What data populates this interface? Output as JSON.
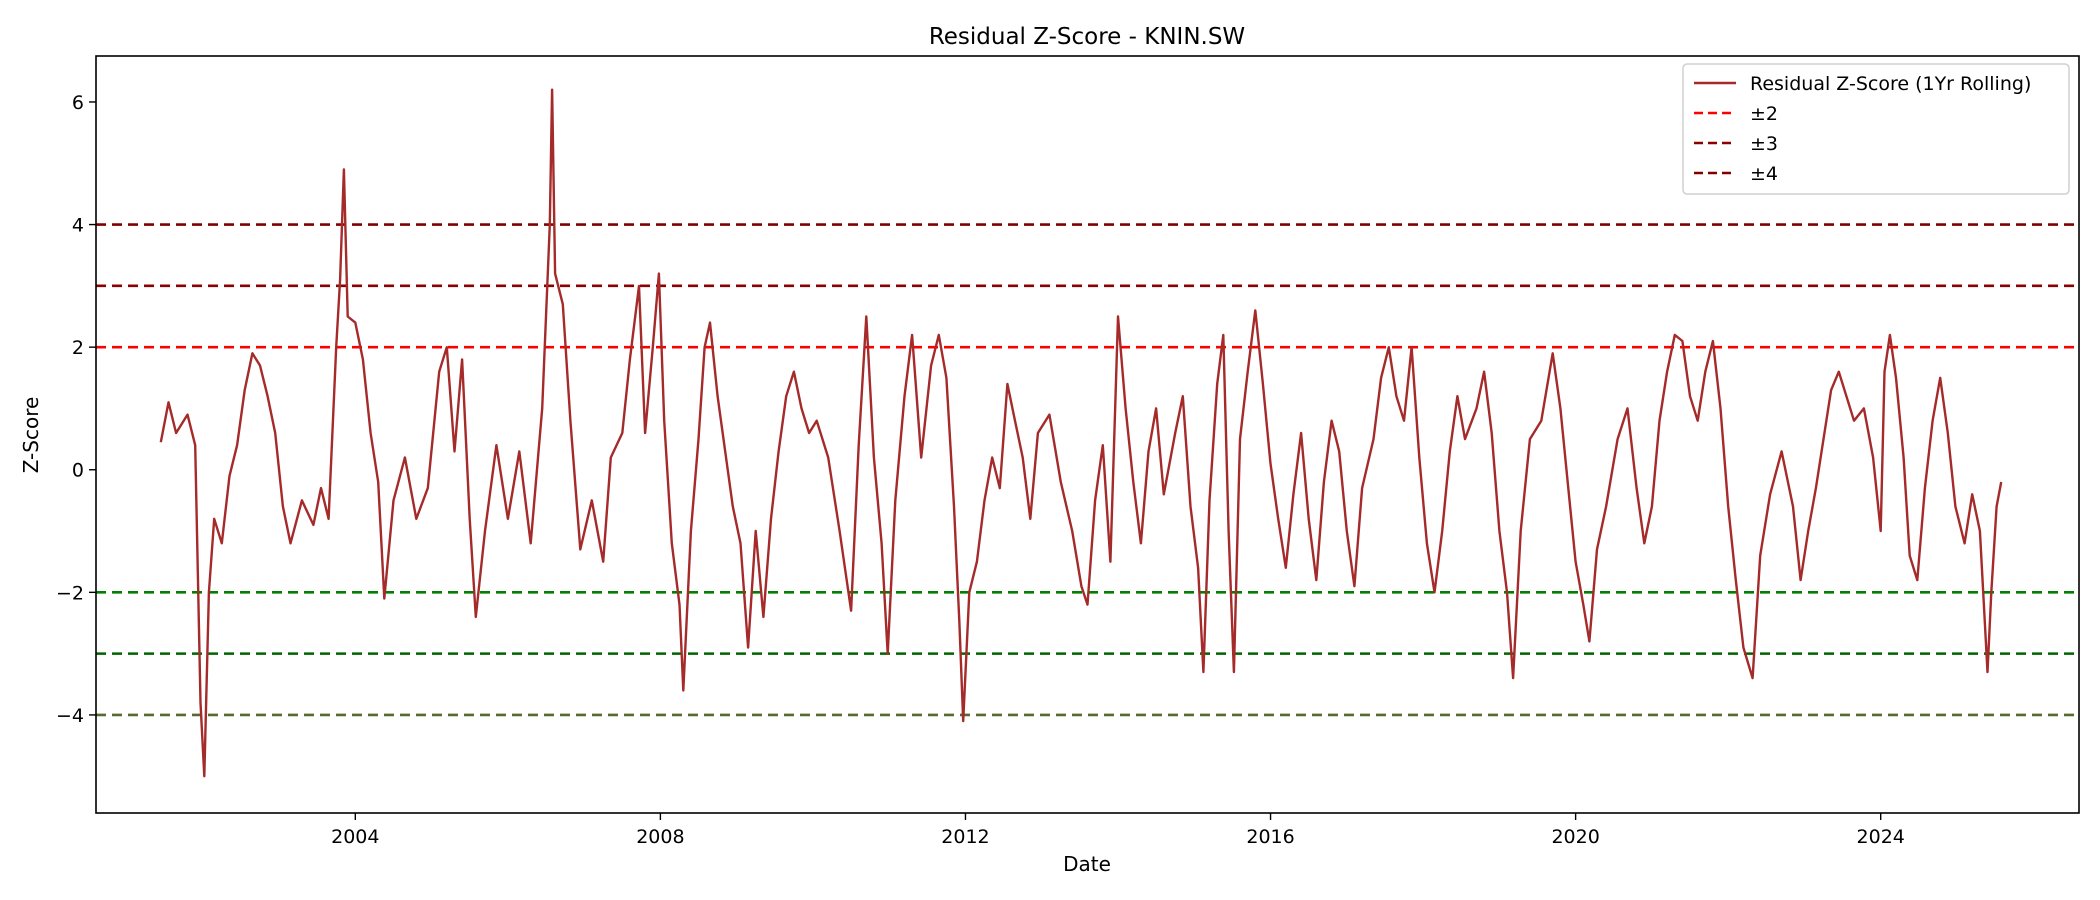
{
  "chart_data": {
    "type": "line",
    "title": "Residual Z-Score - KNIN.SW",
    "xlabel": "Date",
    "ylabel": "Z-Score",
    "xlim": [
      2000.6,
      2026.6
    ],
    "ylim": [
      -5.6,
      6.75
    ],
    "x_ticks": [
      2004,
      2008,
      2012,
      2016,
      2020,
      2024
    ],
    "x_tick_labels": [
      "2004",
      "2008",
      "2012",
      "2016",
      "2020",
      "2024"
    ],
    "y_ticks": [
      -4,
      -2,
      0,
      2,
      4,
      6
    ],
    "y_tick_labels": [
      "−4",
      "−2",
      "0",
      "2",
      "4",
      "6"
    ],
    "grid": false,
    "legend_position": "top-right",
    "series": [
      {
        "name": "Residual Z-Score (1Yr Rolling)",
        "color": "#a52a2a",
        "style": "solid",
        "points": [
          [
            2001.45,
            0.45
          ],
          [
            2001.55,
            1.1
          ],
          [
            2001.65,
            0.6
          ],
          [
            2001.8,
            0.9
          ],
          [
            2001.9,
            0.4
          ],
          [
            2001.97,
            -3.8
          ],
          [
            2002.02,
            -5.0
          ],
          [
            2002.08,
            -2.0
          ],
          [
            2002.15,
            -0.8
          ],
          [
            2002.25,
            -1.2
          ],
          [
            2002.35,
            -0.1
          ],
          [
            2002.45,
            0.4
          ],
          [
            2002.55,
            1.3
          ],
          [
            2002.65,
            1.9
          ],
          [
            2002.75,
            1.7
          ],
          [
            2002.85,
            1.2
          ],
          [
            2002.95,
            0.6
          ],
          [
            2003.05,
            -0.6
          ],
          [
            2003.15,
            -1.2
          ],
          [
            2003.3,
            -0.5
          ],
          [
            2003.45,
            -0.9
          ],
          [
            2003.55,
            -0.3
          ],
          [
            2003.65,
            -0.8
          ],
          [
            2003.75,
            2.0
          ],
          [
            2003.8,
            3.1
          ],
          [
            2003.85,
            4.9
          ],
          [
            2003.9,
            2.5
          ],
          [
            2004.0,
            2.4
          ],
          [
            2004.1,
            1.8
          ],
          [
            2004.2,
            0.6
          ],
          [
            2004.3,
            -0.2
          ],
          [
            2004.38,
            -2.1
          ],
          [
            2004.5,
            -0.5
          ],
          [
            2004.65,
            0.2
          ],
          [
            2004.8,
            -0.8
          ],
          [
            2004.95,
            -0.3
          ],
          [
            2005.1,
            1.6
          ],
          [
            2005.2,
            2.0
          ],
          [
            2005.3,
            0.3
          ],
          [
            2005.4,
            1.8
          ],
          [
            2005.5,
            -0.8
          ],
          [
            2005.58,
            -2.4
          ],
          [
            2005.7,
            -1.0
          ],
          [
            2005.85,
            0.4
          ],
          [
            2006.0,
            -0.8
          ],
          [
            2006.15,
            0.3
          ],
          [
            2006.3,
            -1.2
          ],
          [
            2006.45,
            1.0
          ],
          [
            2006.55,
            4.0
          ],
          [
            2006.58,
            6.2
          ],
          [
            2006.62,
            3.2
          ],
          [
            2006.72,
            2.7
          ],
          [
            2006.82,
            0.8
          ],
          [
            2006.95,
            -1.3
          ],
          [
            2007.1,
            -0.5
          ],
          [
            2007.25,
            -1.5
          ],
          [
            2007.35,
            0.2
          ],
          [
            2007.5,
            0.6
          ],
          [
            2007.6,
            1.8
          ],
          [
            2007.72,
            3.0
          ],
          [
            2007.8,
            0.6
          ],
          [
            2007.9,
            2.0
          ],
          [
            2007.98,
            3.2
          ],
          [
            2008.05,
            0.8
          ],
          [
            2008.15,
            -1.2
          ],
          [
            2008.25,
            -2.2
          ],
          [
            2008.3,
            -3.6
          ],
          [
            2008.4,
            -1.0
          ],
          [
            2008.5,
            0.5
          ],
          [
            2008.58,
            2.0
          ],
          [
            2008.65,
            2.4
          ],
          [
            2008.75,
            1.2
          ],
          [
            2008.85,
            0.3
          ],
          [
            2008.95,
            -0.6
          ],
          [
            2009.05,
            -1.2
          ],
          [
            2009.15,
            -2.9
          ],
          [
            2009.25,
            -1.0
          ],
          [
            2009.35,
            -2.4
          ],
          [
            2009.45,
            -0.8
          ],
          [
            2009.55,
            0.3
          ],
          [
            2009.65,
            1.2
          ],
          [
            2009.75,
            1.6
          ],
          [
            2009.85,
            1.0
          ],
          [
            2009.95,
            0.6
          ],
          [
            2010.05,
            0.8
          ],
          [
            2010.2,
            0.2
          ],
          [
            2010.35,
            -1.0
          ],
          [
            2010.5,
            -2.3
          ],
          [
            2010.6,
            0.4
          ],
          [
            2010.7,
            2.5
          ],
          [
            2010.8,
            0.2
          ],
          [
            2010.9,
            -1.2
          ],
          [
            2010.98,
            -3.0
          ],
          [
            2011.08,
            -0.5
          ],
          [
            2011.2,
            1.2
          ],
          [
            2011.3,
            2.2
          ],
          [
            2011.42,
            0.2
          ],
          [
            2011.55,
            1.7
          ],
          [
            2011.65,
            2.2
          ],
          [
            2011.75,
            1.5
          ],
          [
            2011.85,
            -0.6
          ],
          [
            2011.92,
            -2.5
          ],
          [
            2011.97,
            -4.1
          ],
          [
            2012.05,
            -2.0
          ],
          [
            2012.15,
            -1.5
          ],
          [
            2012.25,
            -0.5
          ],
          [
            2012.35,
            0.2
          ],
          [
            2012.45,
            -0.3
          ],
          [
            2012.55,
            1.4
          ],
          [
            2012.65,
            0.8
          ],
          [
            2012.75,
            0.2
          ],
          [
            2012.85,
            -0.8
          ],
          [
            2012.95,
            0.6
          ],
          [
            2013.1,
            0.9
          ],
          [
            2013.25,
            -0.2
          ],
          [
            2013.4,
            -1.0
          ],
          [
            2013.52,
            -1.9
          ],
          [
            2013.6,
            -2.2
          ],
          [
            2013.7,
            -0.5
          ],
          [
            2013.8,
            0.4
          ],
          [
            2013.9,
            -1.5
          ],
          [
            2014.0,
            2.5
          ],
          [
            2014.1,
            1.0
          ],
          [
            2014.2,
            -0.2
          ],
          [
            2014.3,
            -1.2
          ],
          [
            2014.4,
            0.3
          ],
          [
            2014.5,
            1.0
          ],
          [
            2014.6,
            -0.4
          ],
          [
            2014.75,
            0.6
          ],
          [
            2014.85,
            1.2
          ],
          [
            2014.95,
            -0.6
          ],
          [
            2015.05,
            -1.6
          ],
          [
            2015.12,
            -3.3
          ],
          [
            2015.2,
            -0.5
          ],
          [
            2015.3,
            1.4
          ],
          [
            2015.38,
            2.2
          ],
          [
            2015.45,
            -1.0
          ],
          [
            2015.52,
            -3.3
          ],
          [
            2015.6,
            0.5
          ],
          [
            2015.7,
            1.6
          ],
          [
            2015.8,
            2.6
          ],
          [
            2015.9,
            1.4
          ],
          [
            2016.0,
            0.1
          ],
          [
            2016.1,
            -0.8
          ],
          [
            2016.2,
            -1.6
          ],
          [
            2016.3,
            -0.4
          ],
          [
            2016.4,
            0.6
          ],
          [
            2016.5,
            -0.8
          ],
          [
            2016.6,
            -1.8
          ],
          [
            2016.7,
            -0.2
          ],
          [
            2016.8,
            0.8
          ],
          [
            2016.9,
            0.3
          ],
          [
            2017.0,
            -1.0
          ],
          [
            2017.1,
            -1.9
          ],
          [
            2017.2,
            -0.3
          ],
          [
            2017.35,
            0.5
          ],
          [
            2017.45,
            1.5
          ],
          [
            2017.55,
            2.0
          ],
          [
            2017.65,
            1.2
          ],
          [
            2017.75,
            0.8
          ],
          [
            2017.85,
            2.0
          ],
          [
            2017.95,
            0.2
          ],
          [
            2018.05,
            -1.2
          ],
          [
            2018.15,
            -2.0
          ],
          [
            2018.25,
            -1.0
          ],
          [
            2018.35,
            0.3
          ],
          [
            2018.45,
            1.2
          ],
          [
            2018.55,
            0.5
          ],
          [
            2018.7,
            1.0
          ],
          [
            2018.8,
            1.6
          ],
          [
            2018.9,
            0.6
          ],
          [
            2019.0,
            -1.0
          ],
          [
            2019.1,
            -2.0
          ],
          [
            2019.18,
            -3.4
          ],
          [
            2019.28,
            -1.0
          ],
          [
            2019.4,
            0.5
          ],
          [
            2019.55,
            0.8
          ],
          [
            2019.7,
            1.9
          ],
          [
            2019.8,
            1.0
          ],
          [
            2019.92,
            -0.5
          ],
          [
            2020.0,
            -1.5
          ],
          [
            2020.1,
            -2.2
          ],
          [
            2020.18,
            -2.8
          ],
          [
            2020.28,
            -1.3
          ],
          [
            2020.4,
            -0.6
          ],
          [
            2020.55,
            0.5
          ],
          [
            2020.68,
            1.0
          ],
          [
            2020.8,
            -0.3
          ],
          [
            2020.9,
            -1.2
          ],
          [
            2021.0,
            -0.6
          ],
          [
            2021.1,
            0.8
          ],
          [
            2021.2,
            1.6
          ],
          [
            2021.3,
            2.2
          ],
          [
            2021.4,
            2.1
          ],
          [
            2021.5,
            1.2
          ],
          [
            2021.6,
            0.8
          ],
          [
            2021.7,
            1.6
          ],
          [
            2021.8,
            2.1
          ],
          [
            2021.9,
            1.0
          ],
          [
            2022.0,
            -0.6
          ],
          [
            2022.1,
            -1.8
          ],
          [
            2022.2,
            -2.9
          ],
          [
            2022.32,
            -3.4
          ],
          [
            2022.42,
            -1.4
          ],
          [
            2022.55,
            -0.4
          ],
          [
            2022.7,
            0.3
          ],
          [
            2022.85,
            -0.6
          ],
          [
            2022.95,
            -1.8
          ],
          [
            2023.05,
            -1.0
          ],
          [
            2023.15,
            -0.3
          ],
          [
            2023.25,
            0.5
          ],
          [
            2023.35,
            1.3
          ],
          [
            2023.45,
            1.6
          ],
          [
            2023.55,
            1.2
          ],
          [
            2023.65,
            0.8
          ],
          [
            2023.78,
            1.0
          ],
          [
            2023.9,
            0.2
          ],
          [
            2024.0,
            -1.0
          ],
          [
            2024.05,
            1.6
          ],
          [
            2024.12,
            2.2
          ],
          [
            2024.2,
            1.5
          ],
          [
            2024.3,
            0.2
          ],
          [
            2024.38,
            -1.4
          ],
          [
            2024.48,
            -1.8
          ],
          [
            2024.58,
            -0.3
          ],
          [
            2024.68,
            0.8
          ],
          [
            2024.78,
            1.5
          ],
          [
            2024.88,
            0.6
          ],
          [
            2024.98,
            -0.6
          ],
          [
            2025.1,
            -1.2
          ],
          [
            2025.2,
            -0.4
          ],
          [
            2025.3,
            -1.0
          ],
          [
            2025.4,
            -3.3
          ],
          [
            2025.45,
            -2.0
          ],
          [
            2025.52,
            -0.6
          ],
          [
            2025.58,
            -0.2
          ]
        ]
      }
    ],
    "reference_lines": [
      {
        "y": 2,
        "color": "#ff0000",
        "style": "dashed"
      },
      {
        "y": 3,
        "color": "#8b0000",
        "style": "dashed"
      },
      {
        "y": 4,
        "color": "#800000",
        "style": "dashed"
      },
      {
        "y": -2,
        "color": "#008000",
        "style": "dashed"
      },
      {
        "y": -3,
        "color": "#006400",
        "style": "dashed"
      },
      {
        "y": -4,
        "color": "#556b2f",
        "style": "dashed"
      }
    ],
    "legend": [
      {
        "label": "Residual Z-Score (1Yr Rolling)",
        "color": "#a52a2a",
        "style": "solid"
      },
      {
        "label": "±2",
        "color": "#ff0000",
        "style": "dashed"
      },
      {
        "label": "±3",
        "color": "#8b0000",
        "style": "dashed"
      },
      {
        "label": "±4",
        "color": "#800000",
        "style": "dashed"
      }
    ]
  }
}
